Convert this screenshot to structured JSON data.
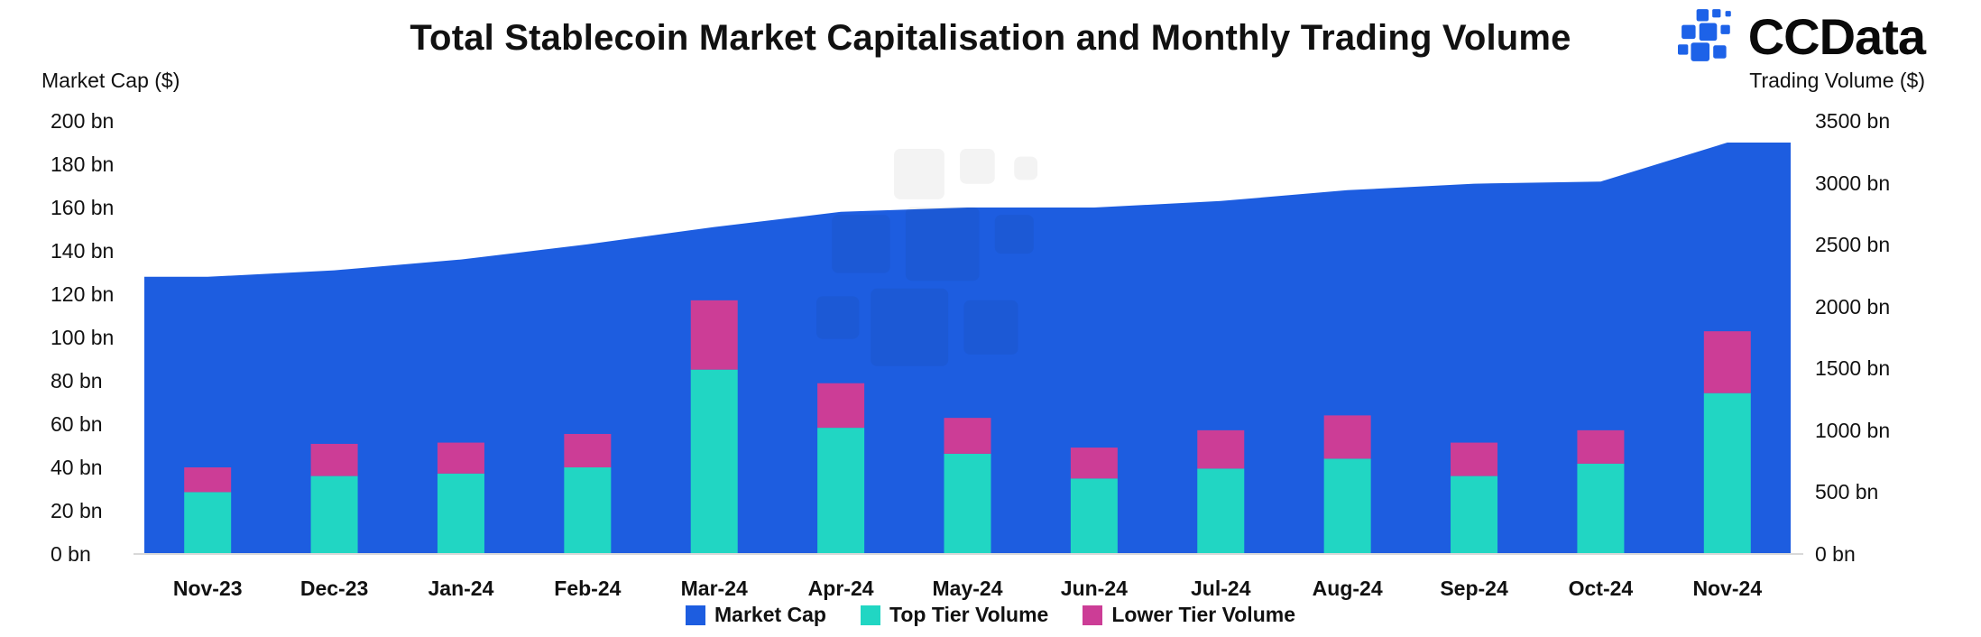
{
  "title": "Total Stablecoin Market Capitalisation and Monthly Trading Volume",
  "brand": {
    "name": "CCData",
    "color": "#1d62e8"
  },
  "left_axis": {
    "label": "Market Cap ($)",
    "ticks": [
      "200 bn",
      "180 bn",
      "160 bn",
      "140 bn",
      "120 bn",
      "100 bn",
      "80 bn",
      "60 bn",
      "40 bn",
      "20 bn",
      "0 bn"
    ]
  },
  "right_axis": {
    "label": "Trading Volume ($)",
    "ticks": [
      "3500 bn",
      "3000 bn",
      "2500 bn",
      "2000 bn",
      "1500 bn",
      "1000 bn",
      "500 bn",
      "0 bn"
    ]
  },
  "legend": [
    {
      "label": "Market Cap",
      "color": "#1d5de0"
    },
    {
      "label": "Top Tier Volume",
      "color": "#21d6c3"
    },
    {
      "label": "Lower Tier Volume",
      "color": "#cc3d96"
    }
  ],
  "chart_data": {
    "type": "combo",
    "categories": [
      "Nov-23",
      "Dec-23",
      "Jan-24",
      "Feb-24",
      "Mar-24",
      "Apr-24",
      "May-24",
      "Jun-24",
      "Jul-24",
      "Aug-24",
      "Sep-24",
      "Oct-24",
      "Nov-24"
    ],
    "left_ylim": [
      0,
      200
    ],
    "right_ylim": [
      0,
      3500
    ],
    "left_unit": "bn USD",
    "right_unit": "bn USD",
    "grid": false,
    "legend_position": "bottom",
    "series": [
      {
        "name": "Market Cap",
        "type": "area",
        "axis": "left",
        "color": "#1d5de0",
        "values": [
          128,
          131,
          136,
          143,
          151,
          158,
          160,
          160,
          163,
          168,
          171,
          172,
          190
        ]
      },
      {
        "name": "Top Tier Volume",
        "type": "bar",
        "stack": "volume",
        "axis": "right",
        "color": "#21d6c3",
        "values": [
          500,
          630,
          650,
          700,
          1490,
          1020,
          810,
          610,
          690,
          770,
          630,
          730,
          1300
        ]
      },
      {
        "name": "Lower Tier Volume",
        "type": "bar",
        "stack": "volume",
        "axis": "right",
        "color": "#cc3d96",
        "values": [
          200,
          260,
          250,
          270,
          560,
          360,
          290,
          250,
          310,
          350,
          270,
          270,
          500
        ]
      }
    ]
  }
}
